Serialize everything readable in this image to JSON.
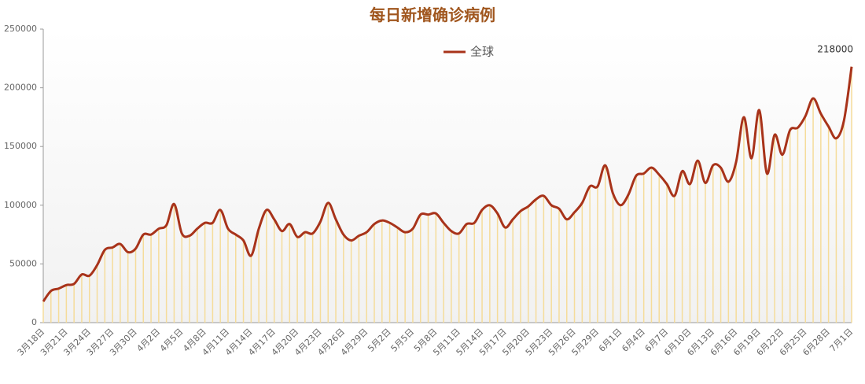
{
  "chart_data": {
    "type": "line",
    "title": "每日新增确诊病例",
    "categories": [
      "3月18日",
      null,
      null,
      "3月21日",
      null,
      null,
      "3月24日",
      null,
      null,
      "3月27日",
      null,
      null,
      "3月30日",
      null,
      null,
      "4月2日",
      null,
      null,
      "4月5日",
      null,
      null,
      "4月8日",
      null,
      null,
      "4月11日",
      null,
      null,
      "4月14日",
      null,
      null,
      "4月17日",
      null,
      null,
      "4月20日",
      null,
      null,
      "4月23日",
      null,
      null,
      "4月26日",
      null,
      null,
      "4月29日",
      null,
      null,
      "5月2日",
      null,
      null,
      "5月5日",
      null,
      null,
      "5月8日",
      null,
      null,
      "5月11日",
      null,
      null,
      "5月14日",
      null,
      null,
      "5月17日",
      null,
      null,
      "5月20日",
      null,
      null,
      "5月23日",
      null,
      null,
      "5月26日",
      null,
      null,
      "5月29日",
      null,
      null,
      "6月1日",
      null,
      null,
      "6月4日",
      null,
      null,
      "6月7日",
      null,
      null,
      "6月10日",
      null,
      null,
      "6月13日",
      null,
      null,
      "6月16日",
      null,
      null,
      "6月19日",
      null,
      null,
      "6月22日",
      null,
      null,
      "6月25日",
      null,
      null,
      "6月28日",
      null,
      null,
      "7月1日"
    ],
    "series": [
      {
        "name": "全球",
        "color": "#a8331a",
        "values": [
          18000,
          27000,
          29000,
          32000,
          33000,
          41000,
          40000,
          49000,
          62000,
          64000,
          67000,
          60000,
          63000,
          75000,
          75000,
          80000,
          83000,
          101000,
          76000,
          74000,
          80000,
          85000,
          85000,
          96000,
          80000,
          75000,
          70000,
          57000,
          80000,
          96000,
          88000,
          78000,
          84000,
          73000,
          77000,
          76000,
          86000,
          102000,
          88000,
          75000,
          70000,
          74000,
          77000,
          84000,
          87000,
          85000,
          81000,
          77000,
          80000,
          92000,
          92000,
          93000,
          85000,
          78000,
          76000,
          84000,
          85000,
          96000,
          100000,
          93000,
          81000,
          88000,
          95000,
          99000,
          105000,
          108000,
          100000,
          97000,
          88000,
          94000,
          102000,
          116000,
          116000,
          134000,
          110000,
          100000,
          109000,
          125000,
          127000,
          132000,
          126000,
          118000,
          108000,
          129000,
          118000,
          138000,
          119000,
          134000,
          132000,
          120000,
          137000,
          175000,
          140000,
          181000,
          127000,
          160000,
          143000,
          164000,
          166000,
          176000,
          191000,
          178000,
          167000,
          157000,
          172000,
          218000
        ]
      }
    ],
    "ylim": [
      0,
      250000
    ],
    "yticks": [
      0,
      50000,
      100000,
      150000,
      200000,
      250000
    ],
    "data_labels": "last",
    "bar_color": "#f5dc9a"
  }
}
